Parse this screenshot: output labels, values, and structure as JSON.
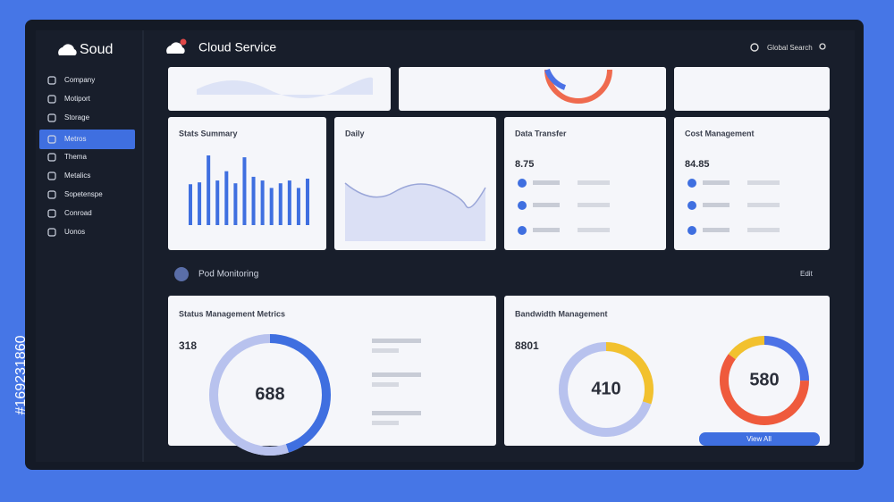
{
  "brand": "Soud",
  "sidebar": {
    "items": [
      "Company",
      "Motiport",
      "Storage",
      "Metros",
      "Thema",
      "Metalics",
      "Sopetenspe",
      "Conroad",
      "Uonos"
    ],
    "active_index": 3
  },
  "header": {
    "title": "Cloud Service",
    "search": "Global Search"
  },
  "cards": [
    {
      "title": "Stats Summary",
      "bars": [
        44,
        46,
        75,
        48,
        58,
        45,
        73,
        52,
        48,
        40,
        45,
        48,
        40,
        50
      ]
    },
    {
      "title": "Daily"
    },
    {
      "title": "Data Transfer",
      "stat": "8.75"
    },
    {
      "title": "Cost Management",
      "stat": "84.85"
    }
  ],
  "section": {
    "title": "Pod Monitoring",
    "link": "Edit"
  },
  "panels": [
    {
      "title": "Status Management Metrics",
      "stat": "318",
      "donut": "688"
    },
    {
      "title": "Bandwidth Management",
      "stat": "8801",
      "donut": "410",
      "donut2": "580",
      "button": "View All"
    }
  ],
  "stock_id": "#169231860"
}
